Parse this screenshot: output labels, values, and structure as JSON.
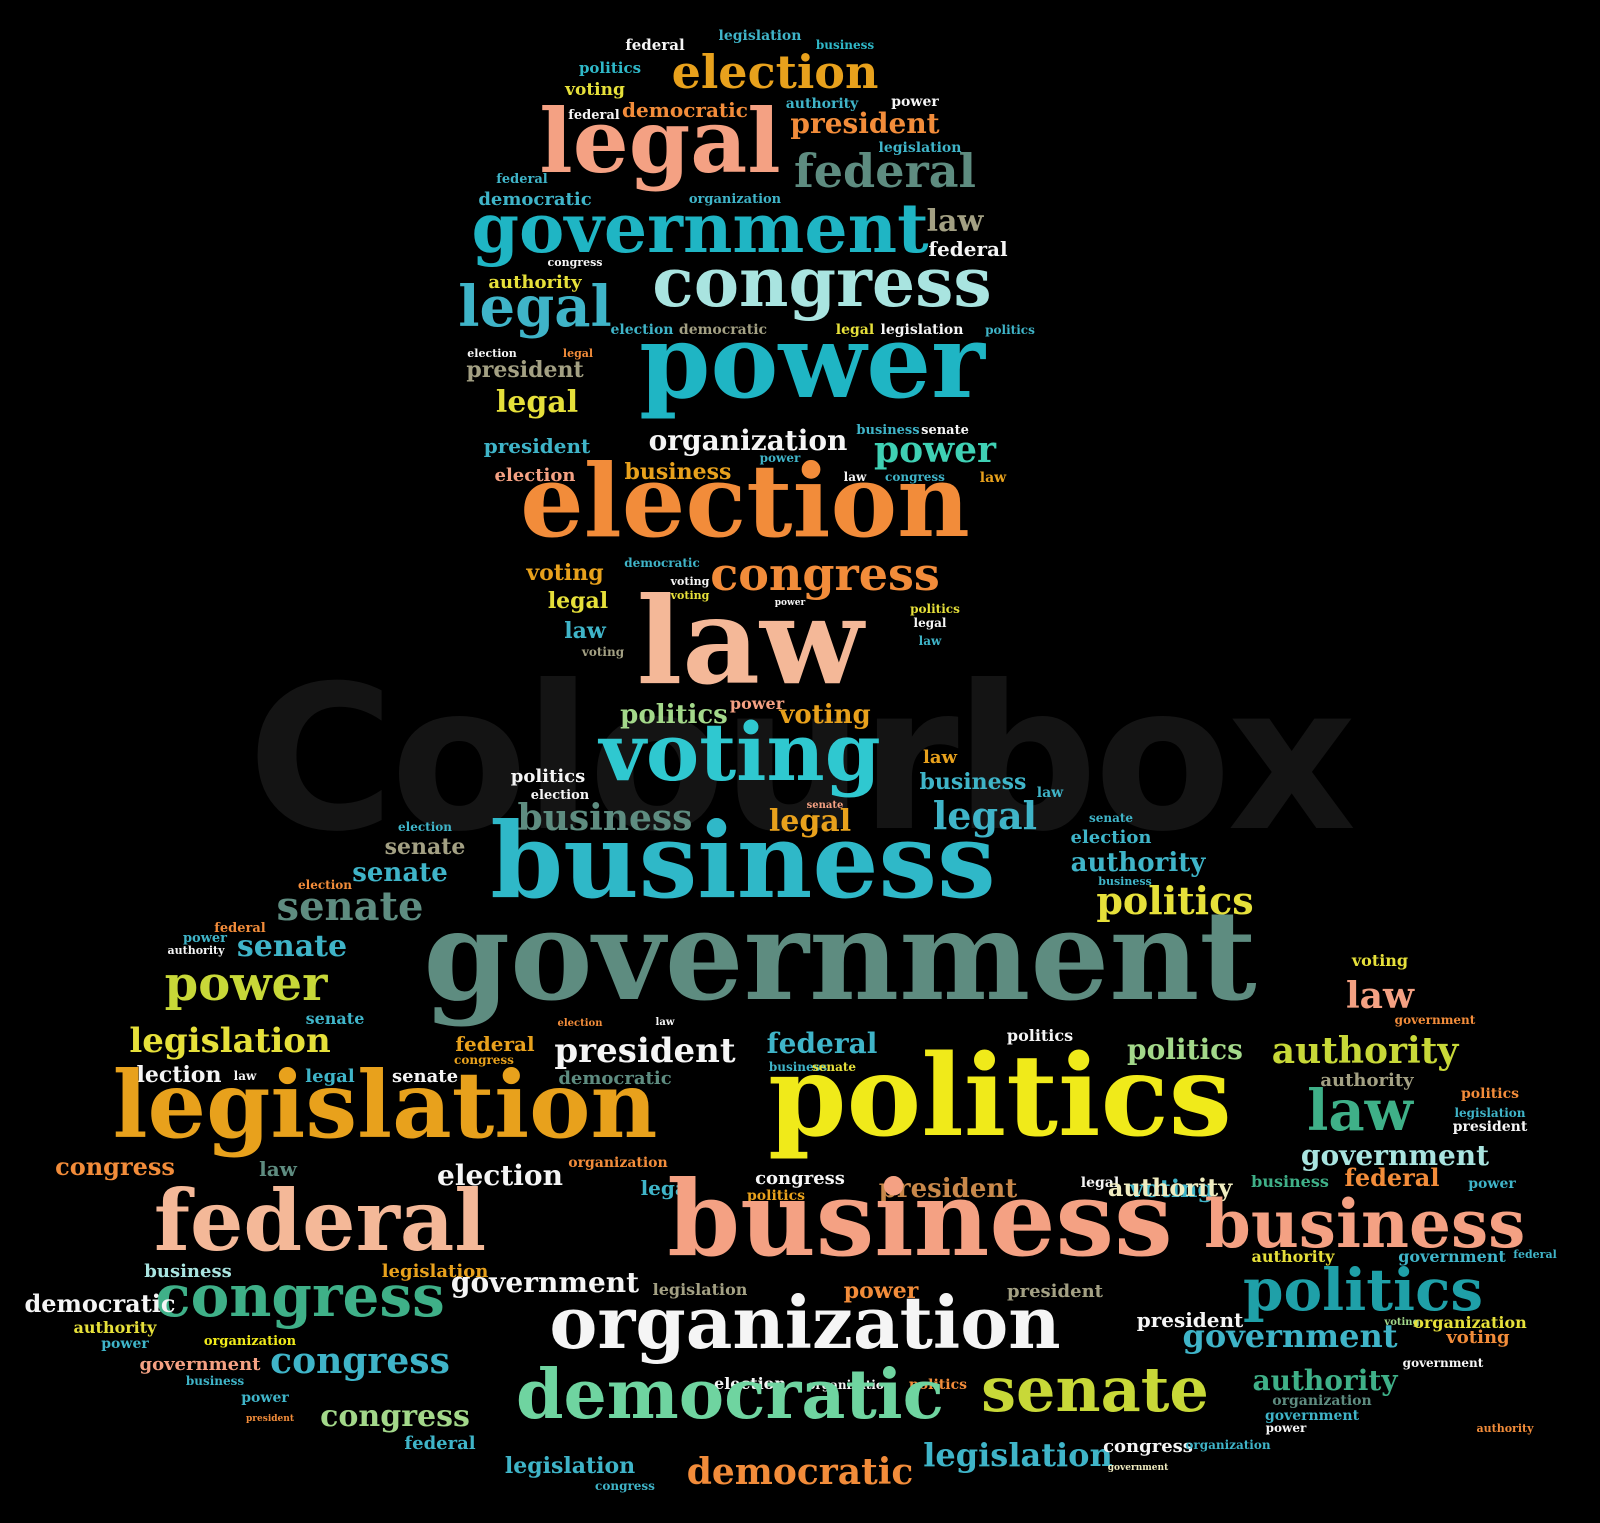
{
  "watermark": "Colourbox",
  "words": [
    {
      "text": "federal",
      "color": "#f5f5f5"
    },
    {
      "text": "legislation",
      "color": "#3fb4c8"
    },
    {
      "text": "business",
      "color": "#2fb8c8"
    },
    {
      "text": "politics",
      "color": "#2fb8c8"
    },
    {
      "text": "election",
      "color": "#e8a11c"
    },
    {
      "text": "voting",
      "color": "#e6e03a"
    },
    {
      "text": "federal",
      "color": "#f5f5f5"
    },
    {
      "text": "democratic",
      "color": "#f28c3a"
    },
    {
      "text": "authority",
      "color": "#3fb4c8"
    },
    {
      "text": "power",
      "color": "#f5f5f5"
    },
    {
      "text": "legal",
      "color": "#f4a183"
    },
    {
      "text": "president",
      "color": "#f28c3a"
    },
    {
      "text": "legislation",
      "color": "#3fb4c8"
    },
    {
      "text": "federal",
      "color": "#3fb4c8"
    },
    {
      "text": "federal",
      "color": "#5e8c80"
    },
    {
      "text": "democratic",
      "color": "#3fb4c8"
    },
    {
      "text": "organization",
      "color": "#3fb4c8"
    },
    {
      "text": "government",
      "color": "#1fb5c4"
    },
    {
      "text": "law",
      "color": "#a3a083"
    },
    {
      "text": "federal",
      "color": "#f5f5f5"
    },
    {
      "text": "congress",
      "color": "#f5f5f5"
    },
    {
      "text": "authority",
      "color": "#e6e03a"
    },
    {
      "text": "congress",
      "color": "#a9e4e0"
    },
    {
      "text": "legal",
      "color": "#3fb4c8"
    },
    {
      "text": "election",
      "color": "#3fb4c8"
    },
    {
      "text": "democratic",
      "color": "#a3a083"
    },
    {
      "text": "legal",
      "color": "#e6e03a"
    },
    {
      "text": "legislation",
      "color": "#f5f5f5"
    },
    {
      "text": "politics",
      "color": "#3fb4c8"
    },
    {
      "text": "election",
      "color": "#f5f5f5"
    },
    {
      "text": "legal",
      "color": "#f28c3a"
    },
    {
      "text": "president",
      "color": "#a3a083"
    },
    {
      "text": "power",
      "color": "#1fb5c4"
    },
    {
      "text": "legal",
      "color": "#e6e03a"
    },
    {
      "text": "business",
      "color": "#3fb4c8"
    },
    {
      "text": "senate",
      "color": "#f5f5f5"
    },
    {
      "text": "president",
      "color": "#3fb4c8"
    },
    {
      "text": "organization",
      "color": "#f5f5f5"
    },
    {
      "text": "power",
      "color": "#3fd0b4"
    },
    {
      "text": "election",
      "color": "#f4a183"
    },
    {
      "text": "business",
      "color": "#e8a11c"
    },
    {
      "text": "power",
      "color": "#3fb4c8"
    },
    {
      "text": "law",
      "color": "#f5f5f5"
    },
    {
      "text": "congress",
      "color": "#3fb4c8"
    },
    {
      "text": "law",
      "color": "#e8a11c"
    },
    {
      "text": "election",
      "color": "#f28c3a"
    },
    {
      "text": "voting",
      "color": "#e8a11c"
    },
    {
      "text": "democratic",
      "color": "#3fb4c8"
    },
    {
      "text": "congress",
      "color": "#f28c3a"
    },
    {
      "text": "legal",
      "color": "#e6e03a"
    },
    {
      "text": "voting",
      "color": "#f5f5f5"
    },
    {
      "text": "voting",
      "color": "#e6e03a"
    },
    {
      "text": "power",
      "color": "#f5f5f5"
    },
    {
      "text": "politics",
      "color": "#e6e03a"
    },
    {
      "text": "law",
      "color": "#3fb4c8"
    },
    {
      "text": "legal",
      "color": "#f5f5f5"
    },
    {
      "text": "voting",
      "color": "#a3a083"
    },
    {
      "text": "law",
      "color": "#3fb4c8"
    },
    {
      "text": "law",
      "color": "#f4b898"
    },
    {
      "text": "politics",
      "color": "#a3d88a"
    },
    {
      "text": "power",
      "color": "#f4a183"
    },
    {
      "text": "voting",
      "color": "#e8a11c"
    },
    {
      "text": "voting",
      "color": "#2fc8d0"
    },
    {
      "text": "law",
      "color": "#e8a11c"
    },
    {
      "text": "politics",
      "color": "#f5f5f5"
    },
    {
      "text": "election",
      "color": "#f5f5f5"
    },
    {
      "text": "business",
      "color": "#3fb4c8"
    },
    {
      "text": "law",
      "color": "#3fb4c8"
    },
    {
      "text": "business",
      "color": "#5e8c80"
    },
    {
      "text": "senate",
      "color": "#f4a183"
    },
    {
      "text": "legal",
      "color": "#e8a11c"
    },
    {
      "text": "senate",
      "color": "#3fb4c8"
    },
    {
      "text": "election",
      "color": "#3fb4c8"
    },
    {
      "text": "senate",
      "color": "#a3a083"
    },
    {
      "text": "legal",
      "color": "#3fb4c8"
    },
    {
      "text": "election",
      "color": "#3fb4c8"
    },
    {
      "text": "business",
      "color": "#2fb8c8"
    },
    {
      "text": "authority",
      "color": "#3fb4c8"
    },
    {
      "text": "senate",
      "color": "#3fb4c8"
    },
    {
      "text": "business",
      "color": "#3fb4c8"
    },
    {
      "text": "election",
      "color": "#f28c3a"
    },
    {
      "text": "senate",
      "color": "#5e8c80"
    },
    {
      "text": "politics",
      "color": "#e6e03a"
    },
    {
      "text": "federal",
      "color": "#f28c3a"
    },
    {
      "text": "power",
      "color": "#3fb4c8"
    },
    {
      "text": "authority",
      "color": "#f5f5f5"
    },
    {
      "text": "senate",
      "color": "#3fb4c8"
    },
    {
      "text": "government",
      "color": "#5e8c80"
    },
    {
      "text": "voting",
      "color": "#e6e03a"
    },
    {
      "text": "power",
      "color": "#c8d838"
    },
    {
      "text": "law",
      "color": "#f4a183"
    },
    {
      "text": "senate",
      "color": "#3fb4c8"
    },
    {
      "text": "election",
      "color": "#f28c3a"
    },
    {
      "text": "law",
      "color": "#f5f5f5"
    },
    {
      "text": "government",
      "color": "#f28c3a"
    },
    {
      "text": "legislation",
      "color": "#e6e03a"
    },
    {
      "text": "politics",
      "color": "#f5f5f5"
    },
    {
      "text": "federal",
      "color": "#e8a11c"
    },
    {
      "text": "congress",
      "color": "#e8a11c"
    },
    {
      "text": "president",
      "color": "#f5f5f5"
    },
    {
      "text": "federal",
      "color": "#3fb4c8"
    },
    {
      "text": "politics",
      "color": "#a3d88a"
    },
    {
      "text": "authority",
      "color": "#c8d838"
    },
    {
      "text": "election",
      "color": "#f5f5f5"
    },
    {
      "text": "law",
      "color": "#f5f5f5"
    },
    {
      "text": "legal",
      "color": "#3fb4c8"
    },
    {
      "text": "senate",
      "color": "#f5f5f5"
    },
    {
      "text": "democratic",
      "color": "#5e8c80"
    },
    {
      "text": "business",
      "color": "#3fb4c8"
    },
    {
      "text": "senate",
      "color": "#e6e03a"
    },
    {
      "text": "authority",
      "color": "#a3a083"
    },
    {
      "text": "politics",
      "color": "#f28c3a"
    },
    {
      "text": "legislation",
      "color": "#e8a11c"
    },
    {
      "text": "politics",
      "color": "#f0ea1a"
    },
    {
      "text": "law",
      "color": "#3fb088"
    },
    {
      "text": "legislation",
      "color": "#3fb4c8"
    },
    {
      "text": "president",
      "color": "#f5f5f5"
    },
    {
      "text": "congress",
      "color": "#f28c3a"
    },
    {
      "text": "law",
      "color": "#5e8c80"
    },
    {
      "text": "election",
      "color": "#f5f5f5"
    },
    {
      "text": "organization",
      "color": "#f28c3a"
    },
    {
      "text": "government",
      "color": "#a9e4e0"
    },
    {
      "text": "congress",
      "color": "#f5f5f5"
    },
    {
      "text": "legal",
      "color": "#3fb4c8"
    },
    {
      "text": "legal",
      "color": "#f5f5f5"
    },
    {
      "text": "federal",
      "color": "#f28c3a"
    },
    {
      "text": "power",
      "color": "#3fb4c8"
    },
    {
      "text": "voting",
      "color": "#3fb4c8"
    },
    {
      "text": "business",
      "color": "#3fb088"
    },
    {
      "text": "politics",
      "color": "#e8a11c"
    },
    {
      "text": "president",
      "color": "#c8884a"
    },
    {
      "text": "authority",
      "color": "#f0ecc0"
    },
    {
      "text": "federal",
      "color": "#f4b898"
    },
    {
      "text": "business",
      "color": "#f4a183"
    },
    {
      "text": "business",
      "color": "#f4a183"
    },
    {
      "text": "authority",
      "color": "#e6e03a"
    },
    {
      "text": "government",
      "color": "#3fb4c8"
    },
    {
      "text": "federal",
      "color": "#3fb4c8"
    },
    {
      "text": "business",
      "color": "#a9e4e0"
    },
    {
      "text": "legislation",
      "color": "#e8a11c"
    },
    {
      "text": "politics",
      "color": "#1fa0a8"
    },
    {
      "text": "government",
      "color": "#f5f5f5"
    },
    {
      "text": "congress",
      "color": "#3fb088"
    },
    {
      "text": "legislation",
      "color": "#a3a083"
    },
    {
      "text": "power",
      "color": "#f28c3a"
    },
    {
      "text": "president",
      "color": "#a3a083"
    },
    {
      "text": "democratic",
      "color": "#f5f5f5"
    },
    {
      "text": "authority",
      "color": "#e6e03a"
    },
    {
      "text": "organization",
      "color": "#f0ea1a"
    },
    {
      "text": "power",
      "color": "#3fb4c8"
    },
    {
      "text": "organization",
      "color": "#f5f5f5"
    },
    {
      "text": "president",
      "color": "#f5f5f5"
    },
    {
      "text": "government",
      "color": "#3fb4c8"
    },
    {
      "text": "voting",
      "color": "#a3d88a"
    },
    {
      "text": "organization",
      "color": "#e6e03a"
    },
    {
      "text": "voting",
      "color": "#f28c3a"
    },
    {
      "text": "government",
      "color": "#f4a183"
    },
    {
      "text": "congress",
      "color": "#3fb4c8"
    },
    {
      "text": "government",
      "color": "#f5f5f5"
    },
    {
      "text": "business",
      "color": "#3fb4c8"
    },
    {
      "text": "election",
      "color": "#f5f5f5"
    },
    {
      "text": "organization",
      "color": "#f5f5f5"
    },
    {
      "text": "politics",
      "color": "#f28c3a"
    },
    {
      "text": "power",
      "color": "#3fb4c8"
    },
    {
      "text": "senate",
      "color": "#c8d838"
    },
    {
      "text": "authority",
      "color": "#3fb088"
    },
    {
      "text": "organization",
      "color": "#5e8c80"
    },
    {
      "text": "government",
      "color": "#3fb4c8"
    },
    {
      "text": "president",
      "color": "#f28c3a"
    },
    {
      "text": "power",
      "color": "#f5f5f5"
    },
    {
      "text": "congress",
      "color": "#a3d88a"
    },
    {
      "text": "democratic",
      "color": "#6fd4a0"
    },
    {
      "text": "authority",
      "color": "#f28c3a"
    },
    {
      "text": "federal",
      "color": "#3fb4c8"
    },
    {
      "text": "legislation",
      "color": "#3fb4c8"
    },
    {
      "text": "congress",
      "color": "#f5f5f5"
    },
    {
      "text": "organization",
      "color": "#3fb4c8"
    },
    {
      "text": "government",
      "color": "#f0ecc0"
    },
    {
      "text": "legislation",
      "color": "#3fb4c8"
    },
    {
      "text": "democratic",
      "color": "#f28c3a"
    },
    {
      "text": "congress",
      "color": "#3fb4c8"
    }
  ]
}
